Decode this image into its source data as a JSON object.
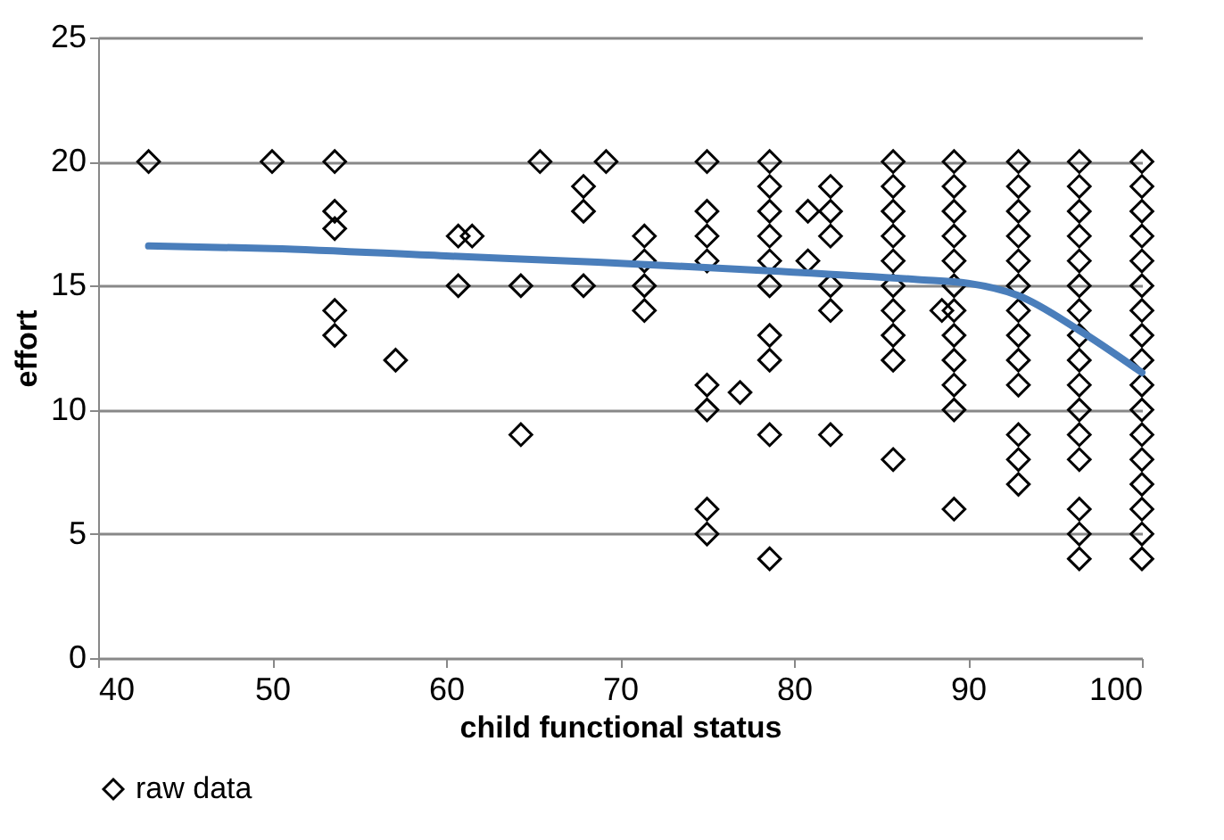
{
  "chart_data": {
    "type": "scatter",
    "xlabel": "child functional status",
    "ylabel": "effort",
    "xlim": [
      40,
      100
    ],
    "xticks": [
      40,
      50,
      60,
      70,
      80,
      90,
      100
    ],
    "ylim": [
      0,
      25
    ],
    "yticks": [
      0,
      5,
      10,
      15,
      20,
      25
    ],
    "grid": "y",
    "legend": "bottom",
    "marker": "diamond",
    "series": [
      {
        "name": "raw data",
        "color": "#000000",
        "x": [
          42.9,
          50,
          53.6,
          53.6,
          53.6,
          53.6,
          53.6,
          57.1,
          60.7,
          60.7,
          61.5,
          64.3,
          64.3,
          65.4,
          67.9,
          67.9,
          67.9,
          69.2,
          71.4,
          71.4,
          71.4,
          71.4,
          75,
          75,
          75,
          75,
          75,
          75,
          75,
          75,
          76.9,
          78.6,
          78.6,
          78.6,
          78.6,
          78.6,
          78.6,
          78.6,
          78.6,
          78.6,
          78.6,
          80.8,
          80.8,
          82.1,
          82.1,
          82.1,
          82.1,
          82.1,
          82.1,
          85.7,
          85.7,
          85.7,
          85.7,
          85.7,
          85.7,
          85.7,
          85.7,
          85.7,
          85.7,
          88.5,
          89.2,
          89.2,
          89.2,
          89.2,
          89.2,
          89.2,
          89.2,
          89.2,
          89.2,
          89.2,
          89.2,
          89.2,
          92.9,
          92.9,
          92.9,
          92.9,
          92.9,
          92.9,
          92.9,
          92.9,
          92.9,
          92.9,
          92.9,
          92.9,
          92.9,
          96.4,
          96.4,
          96.4,
          96.4,
          96.4,
          96.4,
          96.4,
          96.4,
          96.4,
          96.4,
          96.4,
          96.4,
          96.4,
          96.4,
          96.4,
          96.4,
          100,
          100,
          100,
          100,
          100,
          100,
          100,
          100,
          100,
          100,
          100,
          100,
          100,
          100,
          100,
          100,
          100
        ],
        "values": [
          20,
          20,
          20,
          18,
          17.3,
          14,
          13,
          12,
          17,
          15,
          17,
          15,
          9,
          20,
          19,
          18,
          15,
          20,
          17,
          16,
          15,
          14,
          20,
          18,
          17,
          16,
          11,
          10,
          6,
          5,
          10.7,
          20,
          19,
          18,
          17,
          16,
          15,
          13,
          12,
          9,
          4,
          18,
          16,
          19,
          18,
          17,
          15,
          14,
          9,
          20,
          19,
          18,
          17,
          16,
          15,
          14,
          13,
          12,
          8,
          14,
          20,
          19,
          18,
          17,
          16,
          15,
          14,
          13,
          12,
          11,
          10,
          6,
          20,
          19,
          18,
          17,
          16,
          15,
          14,
          13,
          12,
          11,
          9,
          8,
          7,
          20,
          19,
          18,
          17,
          16,
          15,
          14,
          13,
          12,
          11,
          10,
          9,
          8,
          6,
          5,
          4,
          20,
          19,
          18,
          17,
          16,
          15,
          14,
          13,
          12,
          11,
          10,
          9,
          8,
          7,
          6,
          5,
          4
        ]
      },
      {
        "color": "#4a7ebb",
        "type": "line",
        "marker": "none",
        "x": [
          42.9,
          50,
          60,
          68.7,
          78.6,
          87.1,
          90,
          92.9,
          96.4,
          100
        ],
        "values": [
          16.6,
          16.5,
          16.2,
          15.95,
          15.6,
          15.25,
          15.1,
          14.6,
          13.2,
          11.5
        ]
      }
    ]
  }
}
